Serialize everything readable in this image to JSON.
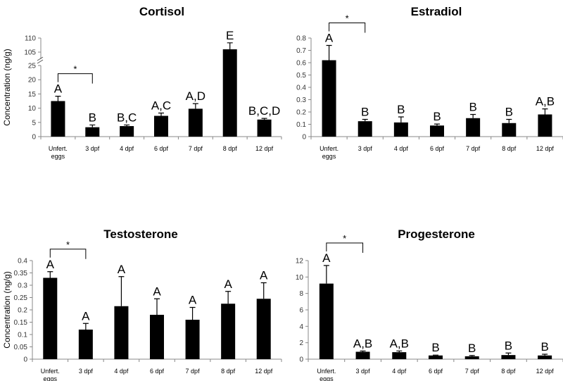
{
  "chart_data": [
    {
      "type": "bar",
      "title": "Cortisol",
      "ylabel": "Concentration (ng/g)",
      "categories": [
        "Unfert. eggs",
        "3 dpf",
        "4 dpf",
        "6 dpf",
        "7 dpf",
        "8 dpf",
        "12 dpf"
      ],
      "values": [
        12.5,
        3.3,
        3.7,
        7.3,
        9.8,
        106,
        6.0
      ],
      "errors": [
        1.7,
        0.8,
        0.4,
        1.0,
        1.8,
        2.3,
        0.4
      ],
      "letters": [
        "A",
        "B",
        "B,C",
        "A,C",
        "A,D",
        "E",
        "B,C,D"
      ],
      "yticks": [
        "0",
        "5",
        "10",
        "15",
        "20",
        "25",
        "105",
        "110"
      ],
      "ylim": [
        0,
        110
      ],
      "axis_break": [
        25,
        103
      ],
      "significance": "*"
    },
    {
      "type": "bar",
      "title": "Estradiol",
      "ylabel": "",
      "categories": [
        "Unfert. eggs",
        "3 dpf",
        "4 dpf",
        "6 dpf",
        "7 dpf",
        "8 dpf",
        "12 dpf"
      ],
      "values": [
        0.62,
        0.125,
        0.115,
        0.09,
        0.15,
        0.11,
        0.18
      ],
      "errors": [
        0.12,
        0.015,
        0.045,
        0.012,
        0.03,
        0.03,
        0.045
      ],
      "letters": [
        "A",
        "B",
        "B",
        "B",
        "B",
        "B",
        "A,B"
      ],
      "yticks": [
        "0",
        "0.1",
        "0.2",
        "0.3",
        "0.4",
        "0.5",
        "0.6",
        "0.7",
        "0.8"
      ],
      "ylim": [
        0,
        0.8
      ],
      "significance": "*"
    },
    {
      "type": "bar",
      "title": "Testosterone",
      "ylabel": "Concentration (ng/g)",
      "categories": [
        "Unfert. eggs",
        "3 dpf",
        "4 dpf",
        "6 dpf",
        "7 dpf",
        "8 dpf",
        "12 dpf"
      ],
      "values": [
        0.33,
        0.12,
        0.215,
        0.18,
        0.16,
        0.225,
        0.245
      ],
      "errors": [
        0.025,
        0.025,
        0.12,
        0.065,
        0.05,
        0.05,
        0.065
      ],
      "letters": [
        "A",
        "A",
        "A",
        "A",
        "A",
        "A",
        "A"
      ],
      "yticks": [
        "0",
        "0.05",
        "0.1",
        "0.15",
        "0.2",
        "0.25",
        "0.3",
        "0.35",
        "0.4"
      ],
      "ylim": [
        0,
        0.4
      ],
      "significance": "*"
    },
    {
      "type": "bar",
      "title": "Progesterone",
      "ylabel": "",
      "categories": [
        "Unfert. eggs",
        "3 dpf",
        "4 dpf",
        "6 dpf",
        "7 dpf",
        "8 dpf",
        "12 dpf"
      ],
      "values": [
        9.2,
        0.9,
        0.85,
        0.45,
        0.35,
        0.5,
        0.45
      ],
      "errors": [
        2.2,
        0.1,
        0.15,
        0.05,
        0.1,
        0.25,
        0.15
      ],
      "letters": [
        "A",
        "A,B",
        "A,B",
        "B",
        "B",
        "B",
        "B"
      ],
      "yticks": [
        "0",
        "2",
        "4",
        "6",
        "8",
        "10",
        "12"
      ],
      "ylim": [
        0,
        12
      ],
      "significance": "*"
    }
  ]
}
